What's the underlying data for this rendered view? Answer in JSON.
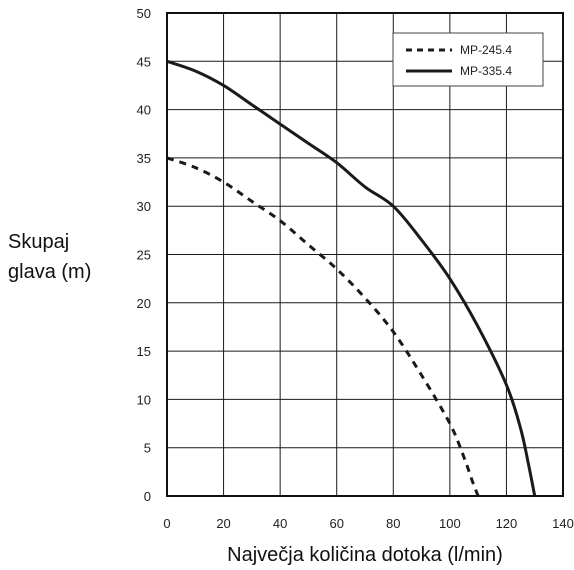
{
  "chart_data": {
    "type": "line",
    "title": "",
    "xlabel": "Največja količina dotoka (l/min)",
    "ylabel_lines": [
      "Skupaj",
      "glava (m)"
    ],
    "xlim": [
      0,
      140
    ],
    "ylim": [
      0,
      50
    ],
    "x_ticks": [
      0,
      20,
      40,
      60,
      80,
      100,
      120,
      140
    ],
    "y_ticks": [
      0,
      5,
      10,
      15,
      20,
      25,
      30,
      35,
      40,
      45,
      50
    ],
    "grid": true,
    "legend_position": "top-right",
    "series": [
      {
        "name": "MP-245.4",
        "style": "dashed",
        "color": "#1a1a1a",
        "points": [
          [
            0,
            35
          ],
          [
            10,
            34
          ],
          [
            20,
            32.5
          ],
          [
            30,
            30.5
          ],
          [
            40,
            28.5
          ],
          [
            50,
            26
          ],
          [
            60,
            23.5
          ],
          [
            70,
            20.5
          ],
          [
            80,
            17
          ],
          [
            90,
            12.5
          ],
          [
            100,
            7.5
          ],
          [
            105,
            4
          ],
          [
            108,
            1.5
          ],
          [
            110,
            0
          ]
        ]
      },
      {
        "name": "MP-335.4",
        "style": "solid",
        "color": "#1a1a1a",
        "points": [
          [
            0,
            45
          ],
          [
            10,
            44
          ],
          [
            20,
            42.5
          ],
          [
            30,
            40.5
          ],
          [
            40,
            38.5
          ],
          [
            50,
            36.5
          ],
          [
            60,
            34.5
          ],
          [
            70,
            32
          ],
          [
            80,
            30
          ],
          [
            90,
            26.5
          ],
          [
            100,
            22.5
          ],
          [
            110,
            17.5
          ],
          [
            120,
            11.5
          ],
          [
            125,
            7
          ],
          [
            128,
            3
          ],
          [
            130,
            0
          ]
        ]
      }
    ]
  }
}
